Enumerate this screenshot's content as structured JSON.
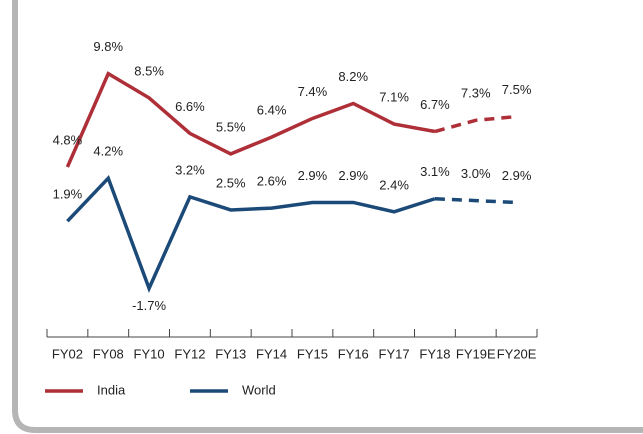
{
  "chart_data": {
    "type": "line",
    "categories": [
      "FY02",
      "FY08",
      "FY10",
      "FY12",
      "FY13",
      "FY14",
      "FY15",
      "FY16",
      "FY17",
      "FY18",
      "FY19E",
      "FY20E"
    ],
    "series": [
      {
        "name": "India",
        "color": "#ae2f37",
        "values": [
          4.8,
          9.8,
          8.5,
          6.6,
          5.5,
          6.4,
          7.4,
          8.2,
          7.1,
          6.7,
          7.3,
          7.5
        ],
        "value_labels": [
          "4.8%",
          "9.8%",
          "8.5%",
          "6.6%",
          "5.5%",
          "6.4%",
          "7.4%",
          "8.2%",
          "7.1%",
          "6.7%",
          "7.3%",
          "7.5%"
        ]
      },
      {
        "name": "World",
        "color": "#1b4a78",
        "values": [
          1.9,
          4.2,
          -1.7,
          3.2,
          2.5,
          2.6,
          2.9,
          2.9,
          2.4,
          3.1,
          3.0,
          2.9
        ],
        "value_labels": [
          "1.9%",
          "4.2%",
          "-1.7%",
          "3.2%",
          "2.5%",
          "2.6%",
          "2.9%",
          "2.9%",
          "2.4%",
          "3.1%",
          "3.0%",
          "2.9%"
        ]
      }
    ],
    "ylim": [
      -3.5,
      11.6
    ],
    "dashed_from": 9,
    "legend": "bottom-left"
  }
}
